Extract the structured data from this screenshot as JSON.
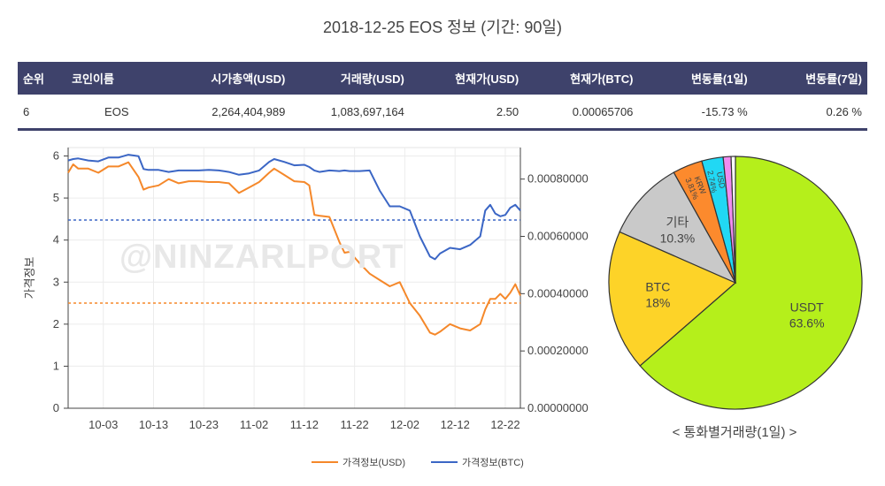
{
  "page_title": "2018-12-25 EOS 정보 (기간: 90일)",
  "table": {
    "headers": [
      "순위",
      "코인이름",
      "시가총액(USD)",
      "거래량(USD)",
      "현재가(USD)",
      "현재가(BTC)",
      "변동률(1일)",
      "변동률(7일)"
    ],
    "row": [
      "6",
      "EOS",
      "2,264,404,989",
      "1,083,697,164",
      "2.50",
      "0.00065706",
      "-15.73 %",
      "0.26 %"
    ]
  },
  "watermark": "@NINZARLPORT",
  "colors": {
    "usd": "#f5882a",
    "btc": "#3b66c5",
    "header_bg": "#3e426b"
  },
  "chart_data": [
    {
      "type": "line",
      "ylabel": "가격정보",
      "x_ticks": [
        "10-03",
        "10-13",
        "10-23",
        "11-02",
        "11-12",
        "11-22",
        "12-02",
        "12-12",
        "12-22"
      ],
      "y_ticks": [
        "0",
        "1",
        "2",
        "3",
        "4",
        "5",
        "6"
      ],
      "y2_ticks": [
        "0.00000000",
        "0.00020000",
        "0.00040000",
        "0.00060000",
        "0.00080000"
      ],
      "ylim": [
        0,
        6.2
      ],
      "y2lim": [
        0,
        0.00091
      ],
      "start_date": "2018-09-26",
      "series": [
        {
          "name": "가격정보(USD)",
          "axis": "left",
          "color": "#f5882a",
          "dates": [
            "09-26",
            "09-27",
            "09-28",
            "09-30",
            "10-02",
            "10-04",
            "10-06",
            "10-08",
            "10-10",
            "10-11",
            "10-12",
            "10-14",
            "10-16",
            "10-18",
            "10-20",
            "10-22",
            "10-24",
            "10-26",
            "10-28",
            "10-30",
            "11-01",
            "11-03",
            "11-05",
            "11-06",
            "11-08",
            "11-10",
            "11-12",
            "11-13",
            "11-14",
            "11-15",
            "11-17",
            "11-19",
            "11-20",
            "11-21",
            "11-23",
            "11-25",
            "11-27",
            "11-29",
            "12-01",
            "12-03",
            "12-05",
            "12-07",
            "12-08",
            "12-09",
            "12-11",
            "12-13",
            "12-15",
            "12-17",
            "12-18",
            "12-19",
            "12-20",
            "12-21",
            "12-22",
            "12-23",
            "12-24",
            "12-25"
          ],
          "values": [
            5.6,
            5.8,
            5.7,
            5.7,
            5.6,
            5.75,
            5.75,
            5.85,
            5.5,
            5.2,
            5.25,
            5.3,
            5.45,
            5.35,
            5.4,
            5.4,
            5.38,
            5.38,
            5.35,
            5.12,
            5.25,
            5.38,
            5.6,
            5.7,
            5.55,
            5.4,
            5.38,
            5.3,
            4.6,
            4.58,
            4.55,
            3.95,
            3.7,
            3.72,
            3.45,
            3.2,
            3.05,
            2.9,
            3.0,
            2.5,
            2.2,
            1.8,
            1.75,
            1.82,
            2.0,
            1.9,
            1.85,
            2.0,
            2.35,
            2.6,
            2.6,
            2.72,
            2.6,
            2.75,
            2.95,
            2.68
          ]
        },
        {
          "name": "가격정보(BTC)",
          "axis": "right",
          "color": "#3b66c5",
          "dates": [
            "09-26",
            "09-27",
            "09-28",
            "09-30",
            "10-02",
            "10-04",
            "10-06",
            "10-08",
            "10-10",
            "10-11",
            "10-12",
            "10-14",
            "10-16",
            "10-18",
            "10-20",
            "10-22",
            "10-24",
            "10-26",
            "10-28",
            "10-30",
            "11-01",
            "11-03",
            "11-05",
            "11-06",
            "11-08",
            "11-10",
            "11-12",
            "11-13",
            "11-14",
            "11-15",
            "11-17",
            "11-19",
            "11-20",
            "11-21",
            "11-23",
            "11-25",
            "11-27",
            "11-29",
            "12-01",
            "12-03",
            "12-05",
            "12-07",
            "12-08",
            "12-09",
            "12-11",
            "12-13",
            "12-15",
            "12-17",
            "12-18",
            "12-19",
            "12-20",
            "12-21",
            "12-22",
            "12-23",
            "12-24",
            "12-25"
          ],
          "values": [
            0.000865,
            0.00087,
            0.000872,
            0.000865,
            0.000862,
            0.000875,
            0.000875,
            0.000885,
            0.00088,
            0.000835,
            0.000832,
            0.000832,
            0.000825,
            0.00083,
            0.00083,
            0.00083,
            0.000832,
            0.00083,
            0.000825,
            0.000815,
            0.00082,
            0.00083,
            0.00086,
            0.00087,
            0.00086,
            0.000848,
            0.00085,
            0.000842,
            0.00083,
            0.000825,
            0.00083,
            0.000828,
            0.00083,
            0.000828,
            0.000828,
            0.00083,
            0.00076,
            0.000705,
            0.000705,
            0.00069,
            0.0006,
            0.00053,
            0.00052,
            0.00054,
            0.00056,
            0.000555,
            0.00057,
            0.0006,
            0.00069,
            0.00071,
            0.00068,
            0.00067,
            0.000675,
            0.0007,
            0.00071,
            0.00069
          ]
        }
      ],
      "reference_lines": [
        {
          "axis": "left",
          "value": 2.5,
          "color": "#f5882a"
        },
        {
          "axis": "right",
          "value": 0.00065706,
          "color": "#3b66c5"
        }
      ],
      "legend_position": "bottom-center"
    },
    {
      "type": "pie",
      "caption": "< 통화별거래량(1일) >",
      "slices": [
        {
          "label": "USDT",
          "value": 63.6,
          "display": "63.6%",
          "color": "#b5ef1b"
        },
        {
          "label": "BTC",
          "value": 18.0,
          "display": "18%",
          "color": "#fdd328"
        },
        {
          "label": "기타",
          "value": 10.3,
          "display": "10.3%",
          "color": "#c9c9c9"
        },
        {
          "label": "KRW",
          "value": 3.81,
          "display": "3.81%",
          "color": "#fc8a2d"
        },
        {
          "label": "USD",
          "value": 2.74,
          "display": "2.74%",
          "color": "#21d8f4"
        },
        {
          "label": "",
          "value": 1.0,
          "display": "",
          "color": "#f08cf0"
        },
        {
          "label": "",
          "value": 0.55,
          "display": "",
          "color": "#ffffff"
        }
      ]
    }
  ]
}
